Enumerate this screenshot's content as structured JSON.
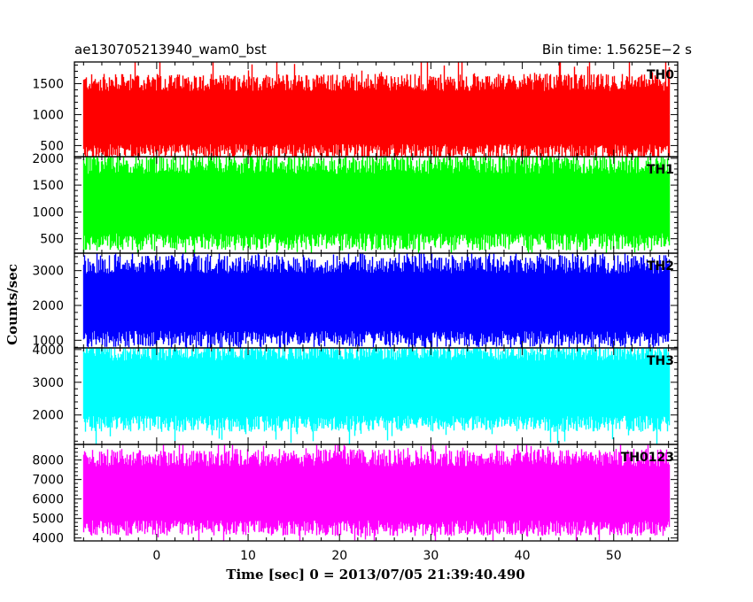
{
  "chart_data": {
    "type": "line",
    "title_left": "ae130705213940_wam0_bst",
    "title_right": "Bin time: 1.5625E−2 s",
    "xlabel": "Time [sec] 0 = 2013/07/05 21:39:40.490",
    "ylabel": "Counts/sec",
    "xlim": [
      -9,
      57
    ],
    "data_xrange": [
      -8,
      56
    ],
    "x_ticks": [
      0,
      10,
      20,
      30,
      40,
      50
    ],
    "grid": false,
    "panels": [
      {
        "name": "TH0",
        "color": "#ff0000",
        "ylim": [
          320,
          1850
        ],
        "y_ticks": [
          500,
          1000,
          1500
        ],
        "band_center": 920,
        "band_low": 460,
        "band_high": 1450
      },
      {
        "name": "TH1",
        "color": "#00ff00",
        "ylim": [
          230,
          2030
        ],
        "y_ticks": [
          500,
          1000,
          1500,
          2000
        ],
        "band_center": 1150,
        "band_low": 520,
        "band_high": 1800
      },
      {
        "name": "TH2",
        "color": "#0000ff",
        "ylim": [
          780,
          3500
        ],
        "y_ticks": [
          1000,
          2000,
          3000
        ],
        "band_center": 2000,
        "band_low": 1150,
        "band_high": 3050
      },
      {
        "name": "TH3",
        "color": "#00ffff",
        "ylim": [
          1100,
          4050
        ],
        "y_ticks": [
          2000,
          3000,
          4000
        ],
        "band_center": 2750,
        "band_low": 1850,
        "band_high": 3800
      },
      {
        "name": "TH0123",
        "color": "#ff00ff",
        "ylim": [
          3850,
          8800
        ],
        "y_ticks": [
          4000,
          5000,
          6000,
          7000,
          8000
        ],
        "band_center": 6000,
        "band_low": 4700,
        "band_high": 7900
      }
    ]
  }
}
